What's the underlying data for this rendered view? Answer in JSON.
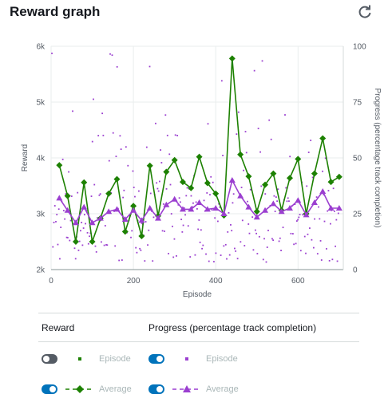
{
  "title": "Reward graph",
  "refresh_icon": "refresh-icon",
  "colors": {
    "reward": "#1d8102",
    "progress": "#9b3fd0",
    "grid": "#eaeded",
    "axis": "#879596",
    "toggle_on": "#0073bb",
    "toggle_off": "#545b64"
  },
  "chart_data": {
    "type": "scatter",
    "xlabel": "Episode",
    "ylabel": "Reward",
    "y2label": "Progress (percentage track completion)",
    "xlim": [
      0,
      710
    ],
    "ylim": [
      2000,
      6000
    ],
    "y2lim": [
      0,
      100
    ],
    "xticks": [
      "0",
      "200",
      "400",
      "600"
    ],
    "yticks": [
      "2k",
      "3k",
      "4k",
      "5k",
      "6k"
    ],
    "y2ticks": [
      "0",
      "25",
      "50",
      "75",
      "100"
    ],
    "grid": true,
    "series": [
      {
        "name": "Average",
        "group": "Reward",
        "axis": "left",
        "marker": "diamond",
        "x": [
          20,
          40,
          60,
          80,
          100,
          120,
          140,
          160,
          180,
          200,
          220,
          240,
          260,
          280,
          300,
          320,
          340,
          360,
          380,
          400,
          420,
          440,
          460,
          480,
          500,
          520,
          540,
          560,
          580,
          600,
          620,
          640,
          660,
          680,
          700
        ],
        "values": [
          3870,
          3320,
          2500,
          3560,
          2500,
          2920,
          3360,
          3620,
          2680,
          3140,
          2600,
          3860,
          2960,
          3750,
          3960,
          3570,
          3460,
          4020,
          3550,
          3360,
          2970,
          5780,
          4060,
          3670,
          3040,
          3520,
          3720,
          3060,
          3640,
          3980,
          3000,
          3720,
          4350,
          3570,
          3660
        ]
      },
      {
        "name": "Average",
        "group": "Progress (percentage track completion)",
        "axis": "right",
        "marker": "triangle",
        "x": [
          20,
          40,
          60,
          80,
          100,
          120,
          140,
          160,
          180,
          200,
          220,
          240,
          260,
          280,
          300,
          320,
          340,
          360,
          380,
          400,
          420,
          440,
          460,
          480,
          500,
          520,
          540,
          560,
          580,
          600,
          620,
          640,
          660,
          680,
          700
        ],
        "values": [
          32,
          26.5,
          21,
          28,
          21,
          23,
          26,
          27,
          22.5,
          26.5,
          22,
          27.5,
          23,
          29,
          31.5,
          27,
          27,
          30,
          27,
          27.5,
          25,
          40,
          33,
          28,
          23.5,
          26.5,
          29.5,
          26,
          27.5,
          31,
          24.5,
          30,
          35,
          27.5,
          27.5
        ]
      }
    ],
    "hidden_series": [
      {
        "name": "Episode",
        "group": "Reward",
        "enabled": false
      },
      {
        "name": "Episode",
        "group": "Progress (percentage track completion)",
        "enabled": true,
        "marker": "dot",
        "values_per_episode": "dense scatter, approx. 2 to 100 percent"
      }
    ]
  },
  "legend": {
    "reward_header": "Reward",
    "progress_header": "Progress (percentage track completion)",
    "reward_episode_label": "Episode",
    "reward_average_label": "Average",
    "progress_episode_label": "Episode",
    "progress_average_label": "Average",
    "reward_episode_on": false,
    "reward_average_on": true,
    "progress_episode_on": true,
    "progress_average_on": true
  }
}
